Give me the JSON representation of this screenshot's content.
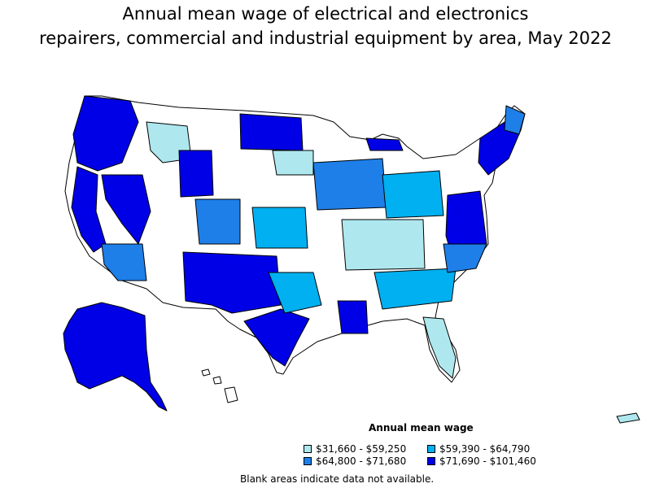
{
  "title": {
    "line1": "Annual mean wage of electrical and electronics",
    "line2": "repairers, commercial and industrial equipment by area, May 2022"
  },
  "legend": {
    "title": "Annual mean wage",
    "items": [
      {
        "label": "$31,660 - $59,250",
        "color": "#aee8ee"
      },
      {
        "label": "$59,390 - $64,790",
        "color": "#00b0f0"
      },
      {
        "label": "$64,800 - $71,680",
        "color": "#1e7fe8"
      },
      {
        "label": "$71,690 - $101,460",
        "color": "#0000e6"
      }
    ]
  },
  "footnote": "Blank areas indicate data not available."
}
